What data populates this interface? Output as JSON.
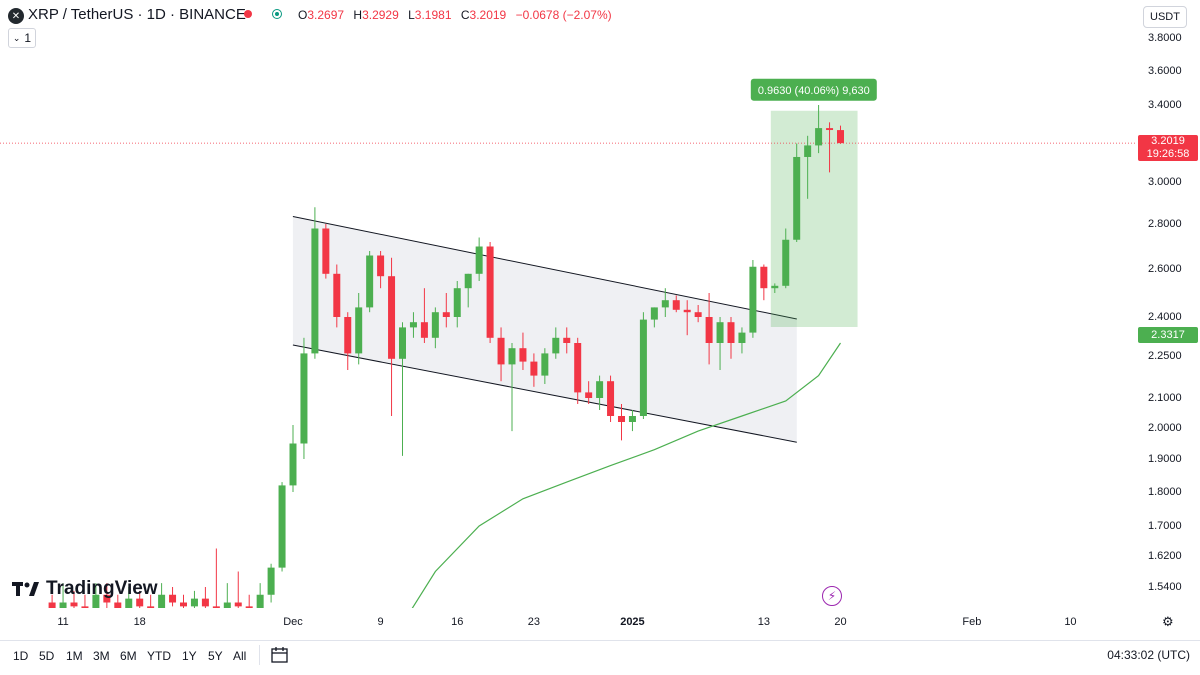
{
  "header": {
    "symbol_icon": "xrp-icon",
    "title": "XRP / TetherUS · 1D · BINANCE",
    "ohlc": [
      {
        "key": "O",
        "value": "3.2697"
      },
      {
        "key": "H",
        "value": "3.2929"
      },
      {
        "key": "L",
        "value": "3.1981"
      },
      {
        "key": "C",
        "value": "3.2019"
      }
    ],
    "change": "−0.0678 (−2.07%)",
    "indicator_count": "1",
    "currency": "USDT"
  },
  "colors": {
    "up": "#089981",
    "up_light": "#4caf50",
    "down": "#f23645",
    "ma": "#4caf50",
    "measure": "#4caf50"
  },
  "chart_data": {
    "type": "candlestick",
    "price_axis_labels": [
      "3.8000",
      "3.6000",
      "3.4000",
      "3.0000",
      "2.8000",
      "2.6000",
      "2.4000",
      "2.2500",
      "2.1000",
      "2.0000",
      "1.9000",
      "1.8000",
      "1.7000",
      "1.6200",
      "1.5400"
    ],
    "price_axis_values": [
      3.8,
      3.6,
      3.4,
      3.0,
      2.8,
      2.6,
      2.4,
      2.25,
      2.1,
      2.0,
      1.9,
      1.8,
      1.7,
      1.62,
      1.54
    ],
    "last_price": "3.2019",
    "countdown": "19:26:58",
    "ma_value": "2.3317",
    "ma_tag_value": 2.3317,
    "time_axis_labels": [
      "11",
      "18",
      "Dec",
      "9",
      "16",
      "23",
      "2025",
      "13",
      "20",
      "Feb",
      "10"
    ],
    "time_axis_days": [
      -21,
      -14,
      0,
      8,
      15,
      22,
      31,
      43,
      50,
      62,
      71
    ],
    "candles": [
      {
        "d": -22,
        "o": 1.5,
        "h": 1.52,
        "l": 1.45,
        "c": 1.48
      },
      {
        "d": -21,
        "o": 1.48,
        "h": 1.55,
        "l": 1.45,
        "c": 1.5
      },
      {
        "d": -20,
        "o": 1.5,
        "h": 1.53,
        "l": 1.46,
        "c": 1.49
      },
      {
        "d": -19,
        "o": 1.49,
        "h": 1.52,
        "l": 1.44,
        "c": 1.47
      },
      {
        "d": -18,
        "o": 1.47,
        "h": 1.55,
        "l": 1.46,
        "c": 1.52
      },
      {
        "d": -17,
        "o": 1.52,
        "h": 1.55,
        "l": 1.48,
        "c": 1.5
      },
      {
        "d": -16,
        "o": 1.5,
        "h": 1.52,
        "l": 1.45,
        "c": 1.48
      },
      {
        "d": -15,
        "o": 1.48,
        "h": 1.54,
        "l": 1.46,
        "c": 1.51
      },
      {
        "d": -14,
        "o": 1.51,
        "h": 1.53,
        "l": 1.47,
        "c": 1.49
      },
      {
        "d": -13,
        "o": 1.49,
        "h": 1.52,
        "l": 1.45,
        "c": 1.48
      },
      {
        "d": -12,
        "o": 1.48,
        "h": 1.55,
        "l": 1.46,
        "c": 1.52
      },
      {
        "d": -11,
        "o": 1.52,
        "h": 1.54,
        "l": 1.49,
        "c": 1.5
      },
      {
        "d": -10,
        "o": 1.5,
        "h": 1.52,
        "l": 1.46,
        "c": 1.49
      },
      {
        "d": -9,
        "o": 1.49,
        "h": 1.53,
        "l": 1.46,
        "c": 1.51
      },
      {
        "d": -8,
        "o": 1.51,
        "h": 1.54,
        "l": 1.48,
        "c": 1.49
      },
      {
        "d": -7,
        "o": 1.49,
        "h": 1.64,
        "l": 1.47,
        "c": 1.48
      },
      {
        "d": -6,
        "o": 1.48,
        "h": 1.55,
        "l": 1.46,
        "c": 1.5
      },
      {
        "d": -5,
        "o": 1.5,
        "h": 1.58,
        "l": 1.48,
        "c": 1.49
      },
      {
        "d": -4,
        "o": 1.49,
        "h": 1.52,
        "l": 1.46,
        "c": 1.48
      },
      {
        "d": -3,
        "o": 1.48,
        "h": 1.55,
        "l": 1.46,
        "c": 1.52
      },
      {
        "d": -2,
        "o": 1.52,
        "h": 1.6,
        "l": 1.5,
        "c": 1.59
      },
      {
        "d": -1,
        "o": 1.59,
        "h": 1.83,
        "l": 1.58,
        "c": 1.82
      },
      {
        "d": 0,
        "o": 1.82,
        "h": 2.01,
        "l": 1.8,
        "c": 1.95
      },
      {
        "d": 1,
        "o": 1.95,
        "h": 2.32,
        "l": 1.9,
        "c": 2.26
      },
      {
        "d": 2,
        "o": 2.26,
        "h": 2.88,
        "l": 2.24,
        "c": 2.78
      },
      {
        "d": 3,
        "o": 2.78,
        "h": 2.8,
        "l": 2.56,
        "c": 2.58
      },
      {
        "d": 4,
        "o": 2.58,
        "h": 2.62,
        "l": 2.36,
        "c": 2.4
      },
      {
        "d": 5,
        "o": 2.4,
        "h": 2.42,
        "l": 2.2,
        "c": 2.26
      },
      {
        "d": 6,
        "o": 2.26,
        "h": 2.5,
        "l": 2.22,
        "c": 2.44
      },
      {
        "d": 7,
        "o": 2.44,
        "h": 2.68,
        "l": 2.42,
        "c": 2.66
      },
      {
        "d": 8,
        "o": 2.66,
        "h": 2.68,
        "l": 2.52,
        "c": 2.57
      },
      {
        "d": 9,
        "o": 2.57,
        "h": 2.65,
        "l": 2.04,
        "c": 2.24
      },
      {
        "d": 10,
        "o": 2.24,
        "h": 2.38,
        "l": 1.91,
        "c": 2.36
      },
      {
        "d": 11,
        "o": 2.36,
        "h": 2.42,
        "l": 2.32,
        "c": 2.38
      },
      {
        "d": 12,
        "o": 2.38,
        "h": 2.52,
        "l": 2.3,
        "c": 2.32
      },
      {
        "d": 13,
        "o": 2.32,
        "h": 2.44,
        "l": 2.28,
        "c": 2.42
      },
      {
        "d": 14,
        "o": 2.42,
        "h": 2.5,
        "l": 2.36,
        "c": 2.4
      },
      {
        "d": 15,
        "o": 2.4,
        "h": 2.55,
        "l": 2.36,
        "c": 2.52
      },
      {
        "d": 16,
        "o": 2.52,
        "h": 2.58,
        "l": 2.44,
        "c": 2.58
      },
      {
        "d": 17,
        "o": 2.58,
        "h": 2.74,
        "l": 2.55,
        "c": 2.7
      },
      {
        "d": 18,
        "o": 2.7,
        "h": 2.72,
        "l": 2.3,
        "c": 2.32
      },
      {
        "d": 19,
        "o": 2.32,
        "h": 2.36,
        "l": 2.16,
        "c": 2.22
      },
      {
        "d": 20,
        "o": 2.22,
        "h": 2.3,
        "l": 1.99,
        "c": 2.28
      },
      {
        "d": 21,
        "o": 2.28,
        "h": 2.34,
        "l": 2.2,
        "c": 2.23
      },
      {
        "d": 22,
        "o": 2.23,
        "h": 2.26,
        "l": 2.14,
        "c": 2.18
      },
      {
        "d": 23,
        "o": 2.18,
        "h": 2.28,
        "l": 2.15,
        "c": 2.26
      },
      {
        "d": 24,
        "o": 2.26,
        "h": 2.36,
        "l": 2.24,
        "c": 2.32
      },
      {
        "d": 25,
        "o": 2.32,
        "h": 2.36,
        "l": 2.26,
        "c": 2.3
      },
      {
        "d": 26,
        "o": 2.3,
        "h": 2.32,
        "l": 2.08,
        "c": 2.12
      },
      {
        "d": 27,
        "o": 2.12,
        "h": 2.16,
        "l": 2.08,
        "c": 2.1
      },
      {
        "d": 28,
        "o": 2.1,
        "h": 2.18,
        "l": 2.06,
        "c": 2.16
      },
      {
        "d": 29,
        "o": 2.16,
        "h": 2.18,
        "l": 2.02,
        "c": 2.04
      },
      {
        "d": 30,
        "o": 2.04,
        "h": 2.08,
        "l": 1.96,
        "c": 2.02
      },
      {
        "d": 31,
        "o": 2.02,
        "h": 2.06,
        "l": 1.99,
        "c": 2.04
      },
      {
        "d": 32,
        "o": 2.04,
        "h": 2.42,
        "l": 2.03,
        "c": 2.39
      },
      {
        "d": 33,
        "o": 2.39,
        "h": 2.44,
        "l": 2.36,
        "c": 2.44
      },
      {
        "d": 34,
        "o": 2.44,
        "h": 2.52,
        "l": 2.4,
        "c": 2.47
      },
      {
        "d": 35,
        "o": 2.47,
        "h": 2.49,
        "l": 2.42,
        "c": 2.43
      },
      {
        "d": 36,
        "o": 2.43,
        "h": 2.47,
        "l": 2.33,
        "c": 2.42
      },
      {
        "d": 37,
        "o": 2.42,
        "h": 2.45,
        "l": 2.38,
        "c": 2.4
      },
      {
        "d": 38,
        "o": 2.4,
        "h": 2.5,
        "l": 2.22,
        "c": 2.3
      },
      {
        "d": 39,
        "o": 2.3,
        "h": 2.4,
        "l": 2.2,
        "c": 2.38
      },
      {
        "d": 40,
        "o": 2.38,
        "h": 2.4,
        "l": 2.24,
        "c": 2.3
      },
      {
        "d": 41,
        "o": 2.3,
        "h": 2.36,
        "l": 2.26,
        "c": 2.34
      },
      {
        "d": 42,
        "o": 2.34,
        "h": 2.64,
        "l": 2.32,
        "c": 2.61
      },
      {
        "d": 43,
        "o": 2.61,
        "h": 2.62,
        "l": 2.47,
        "c": 2.52
      },
      {
        "d": 44,
        "o": 2.52,
        "h": 2.54,
        "l": 2.5,
        "c": 2.53
      },
      {
        "d": 45,
        "o": 2.53,
        "h": 2.78,
        "l": 2.52,
        "c": 2.73
      },
      {
        "d": 46,
        "o": 2.73,
        "h": 3.2,
        "l": 2.72,
        "c": 3.13
      },
      {
        "d": 47,
        "o": 3.13,
        "h": 3.24,
        "l": 2.92,
        "c": 3.19
      },
      {
        "d": 48,
        "o": 3.19,
        "h": 3.4,
        "l": 3.15,
        "c": 3.28
      },
      {
        "d": 49,
        "o": 3.28,
        "h": 3.31,
        "l": 3.05,
        "c": 3.27
      },
      {
        "d": 50,
        "o": 3.2697,
        "h": 3.2929,
        "l": 3.1981,
        "c": 3.2019
      }
    ],
    "ma_line": [
      {
        "d": 9,
        "v": 1.4
      },
      {
        "d": 13,
        "v": 1.58
      },
      {
        "d": 17,
        "v": 1.7
      },
      {
        "d": 21,
        "v": 1.78
      },
      {
        "d": 25,
        "v": 1.83
      },
      {
        "d": 29,
        "v": 1.88
      },
      {
        "d": 33,
        "v": 1.93
      },
      {
        "d": 37,
        "v": 1.99
      },
      {
        "d": 41,
        "v": 2.04
      },
      {
        "d": 45,
        "v": 2.09
      },
      {
        "d": 48,
        "v": 2.18
      },
      {
        "d": 50,
        "v": 2.3
      }
    ],
    "channel": {
      "upper": [
        {
          "d": 2,
          "v": 2.78
        },
        {
          "d": 44,
          "v": 2.4
        }
      ],
      "lower": [
        {
          "d": 2,
          "v": 2.3
        },
        {
          "d": 44,
          "v": 1.98
        }
      ]
    },
    "measure": {
      "from_day": 44,
      "to_day": 49,
      "from_price": 2.4,
      "to_price": 3.37,
      "label": "0.9630 (40.06%) 9,630"
    }
  },
  "time_axis_settings_icon": "gear-icon",
  "watermark": {
    "logo_icon": "tradingview-logo-icon",
    "text": "TradingView"
  },
  "lightning_icon": "lightning-icon",
  "bottom": {
    "ranges": [
      "1D",
      "5D",
      "1M",
      "3M",
      "6M",
      "YTD",
      "1Y",
      "5Y",
      "All"
    ],
    "compare_icon": "calendar-range-icon",
    "clock": "04:33:02 (UTC)"
  }
}
